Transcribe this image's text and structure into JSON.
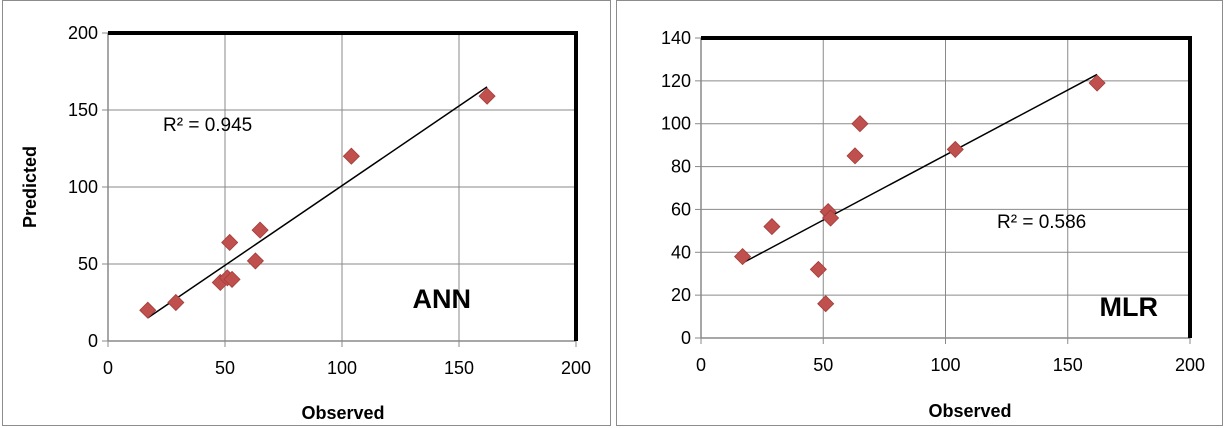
{
  "chart_data": [
    {
      "type": "scatter",
      "label": "ANN",
      "xlabel": "Observed",
      "ylabel": "Predicted",
      "xlim": [
        0,
        200
      ],
      "ylim": [
        0,
        200
      ],
      "x_ticks": [
        "0",
        "50",
        "100",
        "150",
        "200"
      ],
      "y_ticks": [
        "0",
        "50",
        "100",
        "150",
        "200"
      ],
      "grid": true,
      "annotation": "R² = 0.945",
      "marker_color": "#c0504d",
      "points": [
        {
          "x": 17,
          "y": 20
        },
        {
          "x": 29,
          "y": 25
        },
        {
          "x": 48,
          "y": 38
        },
        {
          "x": 51,
          "y": 41
        },
        {
          "x": 53,
          "y": 40
        },
        {
          "x": 52,
          "y": 64
        },
        {
          "x": 63,
          "y": 52
        },
        {
          "x": 65,
          "y": 72
        },
        {
          "x": 104,
          "y": 120
        },
        {
          "x": 162,
          "y": 159
        }
      ],
      "trendline": {
        "x": [
          17,
          162
        ],
        "y": [
          15,
          165
        ]
      }
    },
    {
      "type": "scatter",
      "label": "MLR",
      "xlabel": "Observed",
      "ylabel": "",
      "xlim": [
        0,
        200
      ],
      "ylim": [
        0,
        140
      ],
      "x_ticks": [
        "0",
        "50",
        "100",
        "150",
        "200"
      ],
      "y_ticks": [
        "0",
        "20",
        "40",
        "60",
        "80",
        "100",
        "120",
        "140"
      ],
      "grid": true,
      "annotation": "R² = 0.586",
      "marker_color": "#c0504d",
      "points": [
        {
          "x": 17,
          "y": 38
        },
        {
          "x": 29,
          "y": 52
        },
        {
          "x": 48,
          "y": 32
        },
        {
          "x": 51,
          "y": 16
        },
        {
          "x": 52,
          "y": 59
        },
        {
          "x": 53,
          "y": 56
        },
        {
          "x": 63,
          "y": 85
        },
        {
          "x": 65,
          "y": 100
        },
        {
          "x": 104,
          "y": 88
        },
        {
          "x": 162,
          "y": 119
        }
      ],
      "trendline": {
        "x": [
          17,
          162
        ],
        "y": [
          35,
          123
        ]
      }
    }
  ]
}
